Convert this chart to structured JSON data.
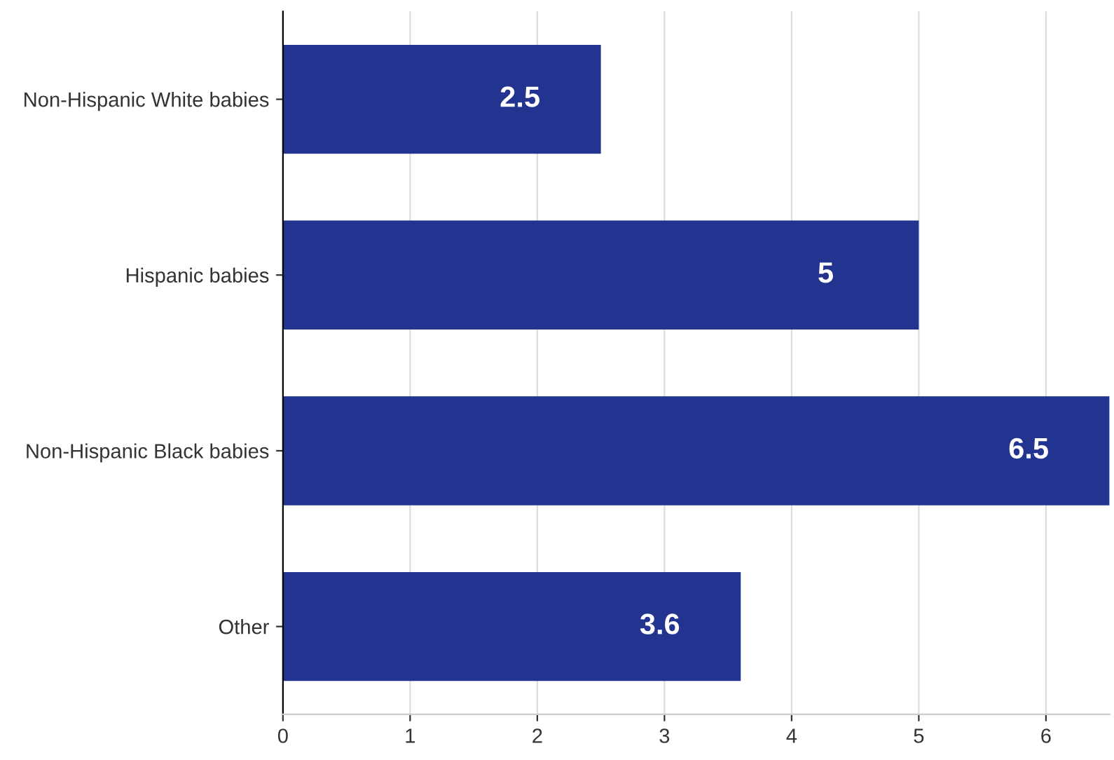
{
  "chart_data": {
    "type": "bar",
    "orientation": "horizontal",
    "categories": [
      "Non-Hispanic White babies",
      "Hispanic babies",
      "Non-Hispanic Black babies",
      "Other"
    ],
    "values": [
      2.5,
      5,
      6.5,
      3.6
    ],
    "color": "#22348f",
    "xlim": [
      0,
      6.5
    ],
    "xticks": [
      0,
      1,
      2,
      3,
      4,
      5,
      6
    ],
    "grid": "x",
    "data_labels": true
  }
}
